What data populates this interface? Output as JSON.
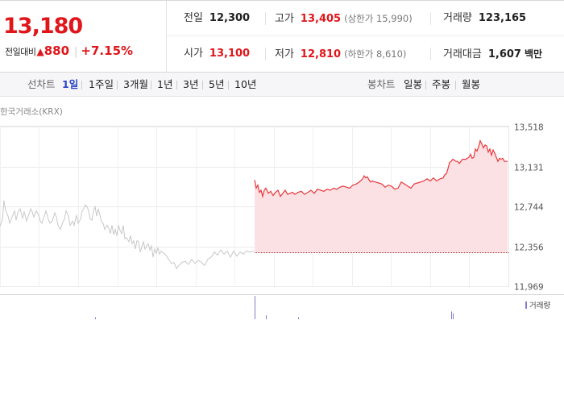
{
  "summary": {
    "price": "13,180",
    "change_label": "전일대비",
    "change_icon": "up-triangle-icon",
    "change_value": "880",
    "change_pct": "+7.15%",
    "up_color": "#e0161b"
  },
  "stats": {
    "prev_close": {
      "label": "전일",
      "value": "12,300"
    },
    "high": {
      "label": "고가",
      "value": "13,405",
      "note": "(상한가 15,990)"
    },
    "volume": {
      "label": "거래량",
      "value": "123,165"
    },
    "open": {
      "label": "시가",
      "value": "13,100"
    },
    "low": {
      "label": "저가",
      "value": "12,810",
      "note": "(하한가 8,610)"
    },
    "amount": {
      "label": "거래대금",
      "value": "1,607",
      "unit": "백만"
    }
  },
  "tabs": {
    "line_title": "선차트",
    "line_items": [
      "1일",
      "1주일",
      "3개월",
      "1년",
      "3년",
      "5년",
      "10년"
    ],
    "line_active": "1일",
    "candle_title": "봉차트",
    "candle_items": [
      "일봉",
      "주봉",
      "월봉"
    ]
  },
  "source": "한국거래소(KRX)",
  "chart_data": {
    "type": "line",
    "ylim": [
      11969,
      13518
    ],
    "y_ticks": [
      "13,518",
      "13,131",
      "12,744",
      "12,356",
      "11,969"
    ],
    "reference_value": 12300,
    "series": [
      {
        "color": "#c8c8c8",
        "fill": false,
        "x": [
          0,
          3,
          5,
          7,
          10,
          12,
          15,
          18,
          20,
          22,
          25,
          28,
          30,
          33,
          36,
          38,
          40,
          42,
          45,
          48,
          50,
          52,
          55,
          57,
          60,
          62,
          65,
          68,
          70,
          72,
          75,
          78,
          80,
          82,
          85,
          87,
          90,
          92,
          95,
          97,
          100,
          102,
          104,
          106,
          108,
          110,
          112,
          114,
          116,
          118,
          120,
          122,
          124,
          126,
          128,
          130,
          133,
          135,
          137,
          139,
          141,
          143,
          145,
          147,
          149,
          151,
          153,
          155,
          157,
          160,
          162,
          164,
          166,
          168,
          170,
          172,
          174,
          176,
          178,
          180,
          182,
          184,
          186,
          188,
          190,
          192,
          194,
          196,
          198,
          200,
          203,
          206,
          210,
          213,
          216,
          219,
          222,
          226,
          230,
          234,
          238,
          242,
          246,
          250,
          254,
          258,
          262,
          266,
          270,
          274,
          278,
          282,
          286,
          290,
          294,
          298,
          302,
          306,
          310,
          315
        ],
        "y": [
          12550,
          12620,
          12800,
          12700,
          12650,
          12580,
          12640,
          12700,
          12610,
          12680,
          12720,
          12630,
          12690,
          12600,
          12670,
          12720,
          12690,
          12640,
          12700,
          12660,
          12600,
          12580,
          12650,
          12700,
          12620,
          12580,
          12600,
          12680,
          12640,
          12560,
          12520,
          12590,
          12620,
          12700,
          12650,
          12560,
          12600,
          12560,
          12660,
          12580,
          12620,
          12700,
          12720,
          12760,
          12740,
          12700,
          12620,
          12610,
          12700,
          12740,
          12650,
          12720,
          12660,
          12590,
          12580,
          12520,
          12560,
          12530,
          12480,
          12560,
          12470,
          12520,
          12460,
          12560,
          12510,
          12480,
          12560,
          12430,
          12440,
          12400,
          12460,
          12380,
          12410,
          12330,
          12410,
          12400,
          12300,
          12350,
          12400,
          12330,
          12360,
          12380,
          12320,
          12360,
          12250,
          12330,
          12290,
          12340,
          12280,
          12310,
          12290,
          12270,
          12220,
          12190,
          12200,
          12140,
          12170,
          12200,
          12210,
          12180,
          12230,
          12190,
          12220,
          12200,
          12170,
          12230,
          12250,
          12300,
          12270,
          12320,
          12280,
          12310,
          12250,
          12310,
          12260,
          12300,
          12280,
          12310,
          12300,
          12310
        ]
      },
      {
        "color": "#e8383d",
        "fill": true,
        "fill_color": "#fbe1e3",
        "x": [
          316,
          318,
          320,
          322,
          324,
          326,
          328,
          330,
          333,
          336,
          339,
          342,
          345,
          348,
          351,
          354,
          357,
          360,
          363,
          366,
          370,
          374,
          378,
          382,
          386,
          390,
          394,
          398,
          402,
          406,
          410,
          414,
          418,
          422,
          426,
          430,
          434,
          438,
          442,
          446,
          450,
          452,
          454,
          456,
          458,
          460,
          462,
          466,
          470,
          474,
          478,
          482,
          486,
          490,
          494,
          498,
          502,
          506,
          510,
          514,
          518,
          522,
          526,
          530,
          534,
          538,
          542,
          546,
          550,
          552,
          554,
          556,
          558,
          560,
          562,
          564,
          566,
          568,
          570,
          574,
          578,
          582,
          584,
          586,
          588,
          590,
          592,
          594,
          596,
          598,
          600,
          602,
          604,
          606,
          608,
          610,
          612,
          614,
          616,
          618,
          620,
          622,
          624,
          626,
          628,
          630
        ],
        "y": [
          13000,
          12920,
          12950,
          12880,
          12900,
          12840,
          12900,
          12920,
          12870,
          12890,
          12850,
          12880,
          12900,
          12840,
          12870,
          12900,
          12860,
          12870,
          12880,
          12860,
          12880,
          12890,
          12860,
          12880,
          12900,
          12870,
          12910,
          12900,
          12890,
          12910,
          12900,
          12920,
          12910,
          12930,
          12940,
          12930,
          12920,
          12950,
          12960,
          12980,
          13010,
          13040,
          13020,
          13030,
          13000,
          12980,
          12990,
          12980,
          12970,
          12960,
          12930,
          12950,
          12940,
          12910,
          12920,
          12980,
          12960,
          12940,
          12920,
          12960,
          12970,
          12980,
          12990,
          13010,
          12990,
          13020,
          12990,
          13010,
          13020,
          13050,
          13060,
          13110,
          13170,
          13180,
          13200,
          13190,
          13180,
          13180,
          13160,
          13200,
          13200,
          13220,
          13250,
          13210,
          13220,
          13300,
          13280,
          13320,
          13380,
          13350,
          13310,
          13340,
          13330,
          13270,
          13300,
          13240,
          13290,
          13260,
          13220,
          13180,
          13210,
          13200,
          13210,
          13180,
          13180,
          13180
        ]
      }
    ],
    "volume": {
      "color": "#8b78c8",
      "x": [
        118,
        316,
        330,
        370,
        560,
        562
      ],
      "v": [
        1,
        12,
        2,
        1,
        4,
        3
      ]
    },
    "volume_legend": "거래량",
    "grid": true
  }
}
